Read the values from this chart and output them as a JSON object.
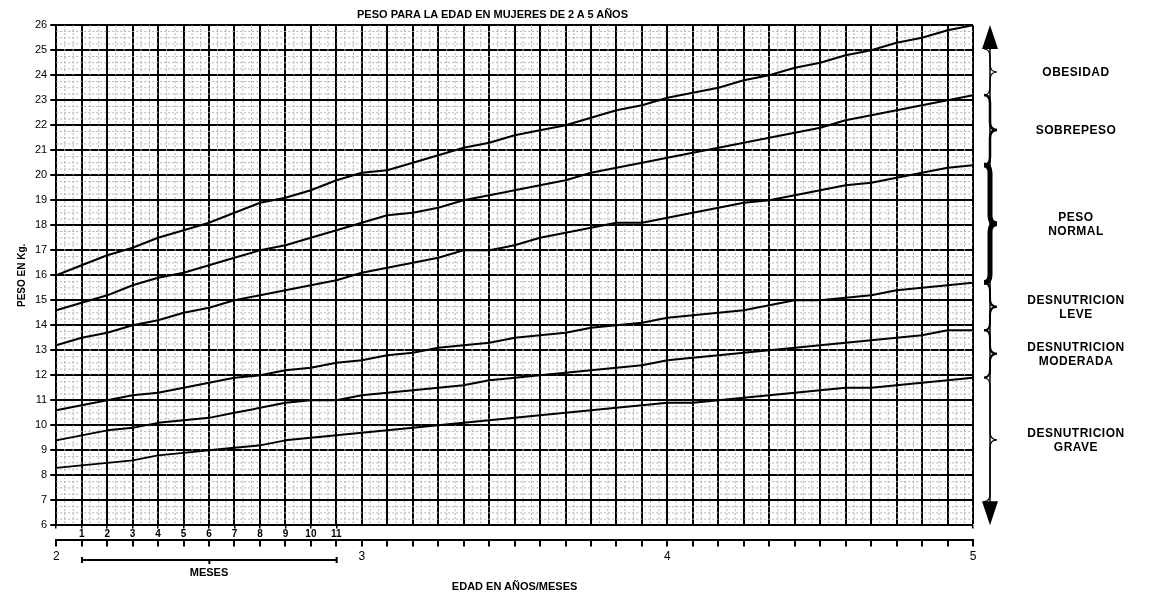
{
  "chart_data": {
    "type": "line",
    "title": "PESO PARA LA EDAD EN MUJERES DE 2 A 5 AÑOS",
    "xlabel": "EDAD EN AÑOS/MESES",
    "ylabel": "PESO EN Kg.",
    "x2label": "MESES",
    "annotations": [
      "OBESIDAD",
      "SOBREPESO",
      "PESO NORMAL",
      "DESNUTRICION LEVE",
      "DESNUTRICION MODERADA",
      "DESNUTRICION GRAVE"
    ],
    "x": [
      2,
      2.083,
      2.167,
      2.25,
      2.333,
      2.417,
      2.5,
      2.583,
      2.667,
      2.75,
      2.833,
      2.917,
      3,
      3.083,
      3.167,
      3.25,
      3.333,
      3.417,
      3.5,
      3.583,
      3.667,
      3.75,
      3.833,
      3.917,
      4,
      4.083,
      4.167,
      4.25,
      4.333,
      4.417,
      4.5,
      4.583,
      4.667,
      4.75,
      4.833,
      4.917,
      5
    ],
    "series": [
      {
        "color": "#000000",
        "values": [
          16.0,
          16.4,
          16.8,
          17.1,
          17.5,
          17.8,
          18.1,
          18.5,
          18.9,
          19.1,
          19.4,
          19.8,
          20.1,
          20.2,
          20.5,
          20.8,
          21.1,
          21.3,
          21.6,
          21.8,
          22.0,
          22.3,
          22.6,
          22.8,
          23.1,
          23.3,
          23.5,
          23.8,
          24.0,
          24.3,
          24.5,
          24.8,
          25.0,
          25.3,
          25.5,
          25.8,
          26.0
        ]
      },
      {
        "color": "#000000",
        "values": [
          14.6,
          14.9,
          15.2,
          15.6,
          15.9,
          16.1,
          16.4,
          16.7,
          17.0,
          17.2,
          17.5,
          17.8,
          18.1,
          18.4,
          18.5,
          18.7,
          19.0,
          19.2,
          19.4,
          19.6,
          19.8,
          20.1,
          20.3,
          20.5,
          20.7,
          20.9,
          21.1,
          21.3,
          21.5,
          21.7,
          21.9,
          22.2,
          22.4,
          22.6,
          22.8,
          23.0,
          23.2
        ]
      },
      {
        "color": "#000000",
        "values": [
          13.2,
          13.5,
          13.7,
          14.0,
          14.2,
          14.5,
          14.7,
          15.0,
          15.2,
          15.4,
          15.6,
          15.8,
          16.1,
          16.3,
          16.5,
          16.7,
          17.0,
          17.0,
          17.2,
          17.5,
          17.7,
          17.9,
          18.1,
          18.1,
          18.3,
          18.5,
          18.7,
          18.9,
          19.0,
          19.2,
          19.4,
          19.6,
          19.7,
          19.9,
          20.1,
          20.3,
          20.4
        ]
      },
      {
        "color": "#000000",
        "values": [
          10.6,
          10.8,
          11.0,
          11.2,
          11.3,
          11.5,
          11.7,
          11.9,
          12.0,
          12.2,
          12.3,
          12.5,
          12.6,
          12.8,
          12.9,
          13.1,
          13.2,
          13.3,
          13.5,
          13.6,
          13.7,
          13.9,
          14.0,
          14.1,
          14.3,
          14.4,
          14.5,
          14.6,
          14.8,
          15.0,
          15.0,
          15.1,
          15.2,
          15.4,
          15.5,
          15.6,
          15.7
        ]
      },
      {
        "color": "#000000",
        "values": [
          9.4,
          9.6,
          9.8,
          9.9,
          10.1,
          10.2,
          10.3,
          10.5,
          10.7,
          10.9,
          11.0,
          11.0,
          11.2,
          11.3,
          11.4,
          11.5,
          11.6,
          11.8,
          11.9,
          12.0,
          12.1,
          12.2,
          12.3,
          12.4,
          12.6,
          12.7,
          12.8,
          12.9,
          13.0,
          13.1,
          13.2,
          13.3,
          13.4,
          13.5,
          13.6,
          13.8,
          13.8
        ]
      },
      {
        "color": "#000000",
        "values": [
          8.3,
          8.4,
          8.5,
          8.6,
          8.8,
          8.9,
          9.0,
          9.1,
          9.2,
          9.4,
          9.5,
          9.6,
          9.7,
          9.8,
          9.9,
          10.0,
          10.1,
          10.2,
          10.3,
          10.4,
          10.5,
          10.6,
          10.7,
          10.8,
          10.9,
          10.9,
          11.0,
          11.1,
          11.2,
          11.3,
          11.4,
          11.5,
          11.5,
          11.6,
          11.7,
          11.8,
          11.9
        ]
      }
    ],
    "xlim": [
      2,
      5
    ],
    "ylim": [
      6,
      26
    ],
    "x2lim": [
      0,
      36
    ],
    "x2ticks": [
      {
        "value": 0,
        "label": null
      },
      1,
      2,
      3,
      4,
      5,
      6,
      7,
      8,
      9,
      10,
      11,
      {
        "value": 36,
        "label": null
      }
    ],
    "xticks": [
      2,
      {
        "value": 2.083,
        "label": null
      },
      {
        "value": 2.167,
        "label": null
      },
      {
        "value": 2.25,
        "label": null
      },
      {
        "value": 2.333,
        "label": null
      },
      {
        "value": 2.417,
        "label": null
      },
      {
        "value": 2.5,
        "label": null
      },
      {
        "value": 2.583,
        "label": null
      },
      {
        "value": 2.667,
        "label": null
      },
      {
        "value": 2.75,
        "label": null
      },
      {
        "value": 2.833,
        "label": null
      },
      {
        "value": 2.917,
        "label": null
      },
      3,
      {
        "value": 3.083,
        "label": null
      },
      {
        "value": 3.167,
        "label": null
      },
      {
        "value": 3.25,
        "label": null
      },
      {
        "value": 3.333,
        "label": null
      },
      {
        "value": 3.417,
        "label": null
      },
      {
        "value": 3.5,
        "label": null
      },
      {
        "value": 3.583,
        "label": null
      },
      {
        "value": 3.667,
        "label": null
      },
      {
        "value": 3.75,
        "label": null
      },
      {
        "value": 3.833,
        "label": null
      },
      {
        "value": 3.917,
        "label": null
      },
      4,
      {
        "value": 4.083,
        "label": null
      },
      {
        "value": 4.167,
        "label": null
      },
      {
        "value": 4.25,
        "label": null
      },
      {
        "value": 4.333,
        "label": null
      },
      {
        "value": 4.417,
        "label": null
      },
      {
        "value": 4.5,
        "label": null
      },
      {
        "value": 4.583,
        "label": null
      },
      {
        "value": 4.667,
        "label": null
      },
      {
        "value": 4.75,
        "label": null
      },
      {
        "value": 4.833,
        "label": null
      },
      {
        "value": 4.917,
        "label": null
      },
      5
    ],
    "yticks": [
      6,
      7,
      8,
      9,
      10,
      11,
      12,
      13,
      14,
      15,
      16,
      17,
      18,
      19,
      20,
      21,
      22,
      23,
      24,
      25,
      26
    ],
    "grid": true,
    "marker": "none",
    "line_style": "solid"
  }
}
